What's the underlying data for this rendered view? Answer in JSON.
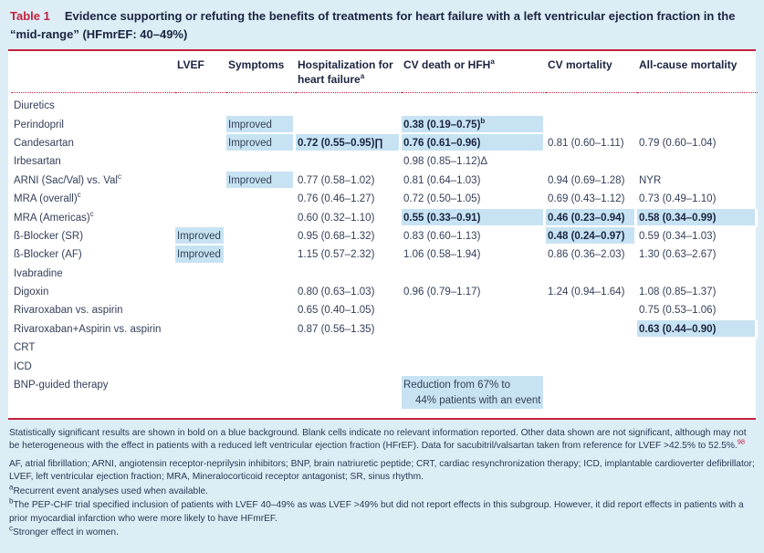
{
  "caption": {
    "label": "Table 1",
    "text": "Evidence supporting or refuting the benefits of treatments for heart failure with a left ventricular ejection fraction in the “mid-range” (HFmrEF: 40–49%)"
  },
  "accent_colors": {
    "rule_red": "#c5203f",
    "highlight_blue": "#c7e3f3",
    "page_background": "#dcedf6"
  },
  "table": {
    "columns": [
      {
        "label": "LVEF"
      },
      {
        "label": "Symptoms"
      },
      {
        "label": "Hospitalization for heart failure",
        "sup": "a"
      },
      {
        "label": "CV death or HFH",
        "sup": "a"
      },
      {
        "label": "CV mortality"
      },
      {
        "label": "All-cause mortality"
      }
    ],
    "rows": [
      {
        "treatment": "Diuretics",
        "cells": [
          null,
          null,
          null,
          null,
          null,
          null
        ]
      },
      {
        "treatment": "Perindopril",
        "cells": [
          null,
          {
            "t": "Improved",
            "h": true
          },
          null,
          {
            "t": "0.38 (0.19–0.75)",
            "sup": "b",
            "b": true,
            "h": true
          },
          null,
          null
        ]
      },
      {
        "treatment": "Candesartan",
        "cells": [
          null,
          {
            "t": "Improved",
            "h": true
          },
          {
            "t": "0.72 (0.55–0.95)∏",
            "b": true,
            "h": true
          },
          {
            "t": "0.76 (0.61–0.96)",
            "b": true,
            "h": true
          },
          {
            "t": "0.81 (0.60–1.11)"
          },
          {
            "t": "0.79 (0.60–1.04)"
          }
        ]
      },
      {
        "treatment": "Irbesartan",
        "cells": [
          null,
          null,
          null,
          {
            "t": "0.98 (0.85–1.12)Δ"
          },
          null,
          null
        ]
      },
      {
        "treatment": "ARNI (Sac/Val) vs. Val",
        "sup": "c",
        "cells": [
          null,
          {
            "t": "Improved",
            "h": true
          },
          {
            "t": "0.77 (0.58–1.02)"
          },
          {
            "t": "0.81 (0.64–1.03)"
          },
          {
            "t": "0.94 (0.69–1.28)"
          },
          {
            "t": "NYR"
          }
        ]
      },
      {
        "treatment": "MRA (overall)",
        "sup": "c",
        "cells": [
          null,
          null,
          {
            "t": "0.76 (0.46–1.27)"
          },
          {
            "t": "0.72 (0.50–1.05)"
          },
          {
            "t": "0.69 (0.43–1.12)"
          },
          {
            "t": "0.73 (0.49–1.10)"
          }
        ]
      },
      {
        "treatment": "MRA (Americas)",
        "sup": "c",
        "cells": [
          null,
          null,
          {
            "t": "0.60 (0.32–1.10)"
          },
          {
            "t": "0.55 (0.33–0.91)",
            "b": true,
            "h": true
          },
          {
            "t": "0.46 (0.23–0.94)",
            "b": true,
            "h": true
          },
          {
            "t": "0.58 (0.34–0.99)",
            "b": true,
            "h": true
          }
        ]
      },
      {
        "treatment": "ß-Blocker (SR)",
        "cells": [
          {
            "t": "Improved",
            "h": true
          },
          null,
          {
            "t": "0.95 (0.68–1.32)"
          },
          {
            "t": "0.83 (0.60–1.13)"
          },
          {
            "t": "0.48 (0.24–0.97)",
            "b": true,
            "h": true
          },
          {
            "t": "0.59 (0.34–1.03)"
          }
        ]
      },
      {
        "treatment": "ß-Blocker (AF)",
        "cells": [
          {
            "t": "Improved",
            "h": true
          },
          null,
          {
            "t": "1.15 (0.57–2.32)"
          },
          {
            "t": "1.06 (0.58–1.94)"
          },
          {
            "t": "0.86 (0.36–2.03)"
          },
          {
            "t": "1.30 (0.63–2.67)"
          }
        ]
      },
      {
        "treatment": "Ivabradine",
        "cells": [
          null,
          null,
          null,
          null,
          null,
          null
        ]
      },
      {
        "treatment": "Digoxin",
        "cells": [
          null,
          null,
          {
            "t": "0.80 (0.63–1.03)"
          },
          {
            "t": "0.96 (0.79–1.17)"
          },
          {
            "t": "1.24 (0.94–1.64)"
          },
          {
            "t": "1.08 (0.85–1.37)"
          }
        ]
      },
      {
        "treatment": "Rivaroxaban vs. aspirin",
        "cells": [
          null,
          null,
          {
            "t": "0.65 (0.40–1.05)"
          },
          null,
          null,
          {
            "t": "0.75 (0.53–1.06)"
          }
        ]
      },
      {
        "treatment": "Rivaroxaban+Aspirin vs. aspirin",
        "cells": [
          null,
          null,
          {
            "t": "0.87 (0.56–1.35)"
          },
          null,
          null,
          {
            "t": "0.63 (0.44–0.90)",
            "b": true,
            "h": true
          }
        ]
      },
      {
        "treatment": "CRT",
        "cells": [
          null,
          null,
          null,
          null,
          null,
          null
        ]
      },
      {
        "treatment": "ICD",
        "cells": [
          null,
          null,
          null,
          null,
          null,
          null
        ]
      },
      {
        "treatment": "BNP-guided therapy",
        "cells": [
          null,
          null,
          null,
          {
            "t": "Reduction from 67% to",
            "t2": "44% patients with an event",
            "h": true
          },
          null,
          null
        ]
      }
    ]
  },
  "footnotes": {
    "legend": "Statistically significant results are shown in bold on a blue background. Blank cells indicate no relevant information reported. Other data shown are not significant, although may not be heterogeneous with the effect in patients with a reduced left ventricular ejection fraction (HFrEF). Data for sacubitril/valsartan taken from reference for LVEF >42.5% to 52.5%.",
    "legend_ref": "98",
    "abbreviations": "AF, atrial fibrillation; ARNI, angiotensin receptor-neprilysin inhibitors; BNP, brain natriuretic peptide; CRT, cardiac resynchronization therapy; ICD, implantable cardioverter defibrillator; LVEF, left ventricular ejection fraction; MRA, Mineralocorticoid receptor antagonist; SR, sinus rhythm.",
    "a_mark": "a",
    "a": "Recurrent event analyses used when available.",
    "b_mark": "b",
    "b": "The PEP-CHF trial specified inclusion of patients with LVEF 40–49% as was LVEF >49% but did not report effects in this subgroup. However, it did report effects in patients with a prior myocardial infarction who were more likely to have HFmrEF.",
    "c_mark": "c",
    "c": "Stronger effect in women."
  }
}
